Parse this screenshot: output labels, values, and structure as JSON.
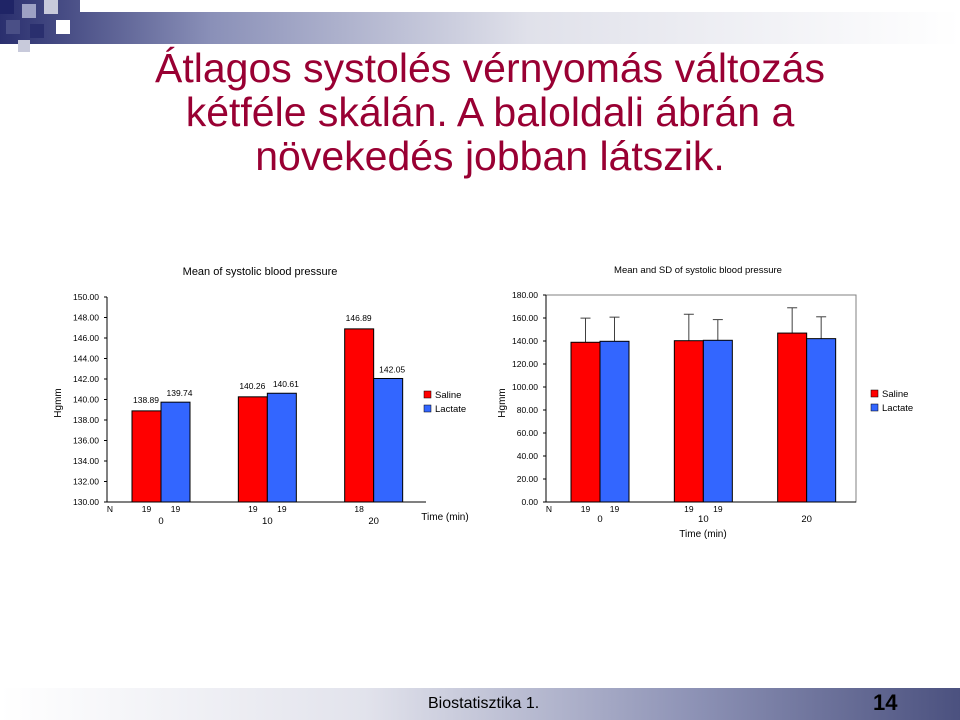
{
  "slide": {
    "title_lines": [
      "Átlagos systolés vérnyomás változás",
      "kétféle skálán. A baloldali ábrán a",
      "növekedés jobban látszik."
    ],
    "footer": "Biostatisztika 1.",
    "page_number": "14",
    "accent_color": "#990033"
  },
  "chart_data": [
    {
      "type": "bar",
      "title": "Mean of systolic blood pressure",
      "ylabel": "Hgmm",
      "xlabel": "Time (min)",
      "ylim": [
        130,
        150
      ],
      "yticks": [
        "130.00",
        "132.00",
        "134.00",
        "136.00",
        "138.00",
        "140.00",
        "142.00",
        "144.00",
        "146.00",
        "148.00",
        "150.00"
      ],
      "categories": [
        "0",
        "10",
        "20"
      ],
      "n_label": "N",
      "n_values": [
        [
          "19",
          "19"
        ],
        [
          "19",
          "19"
        ],
        [
          "18",
          ""
        ]
      ],
      "series": [
        {
          "name": "Saline",
          "color": "#ff0000",
          "values": [
            138.89,
            140.26,
            146.89
          ],
          "labels": [
            "138.89",
            "140.26",
            "146.89"
          ]
        },
        {
          "name": "Lactate",
          "color": "#3366ff",
          "values": [
            139.74,
            140.61,
            142.05
          ],
          "labels": [
            "139.74",
            "140.61",
            "142.05"
          ]
        }
      ],
      "legend": "right"
    },
    {
      "type": "bar",
      "title": "Mean and SD of systolic blood pressure",
      "ylabel": "Hgmm",
      "xlabel": "Time (min)",
      "ylim": [
        0,
        180
      ],
      "yticks": [
        "0.00",
        "20.00",
        "40.00",
        "60.00",
        "80.00",
        "100.00",
        "120.00",
        "140.00",
        "160.00",
        "180.00"
      ],
      "categories": [
        "0",
        "10",
        "20"
      ],
      "n_label": "N",
      "n_values": [
        [
          "19",
          "19"
        ],
        [
          "19",
          "19"
        ],
        [
          "",
          ""
        ]
      ],
      "series": [
        {
          "name": "Saline",
          "color": "#ff0000",
          "values": [
            138.89,
            140.26,
            146.89
          ],
          "sd": [
            21,
            23,
            22
          ]
        },
        {
          "name": "Lactate",
          "color": "#3366ff",
          "values": [
            139.74,
            140.61,
            142.05
          ],
          "sd": [
            21,
            18,
            19
          ]
        }
      ],
      "legend": "right"
    }
  ]
}
